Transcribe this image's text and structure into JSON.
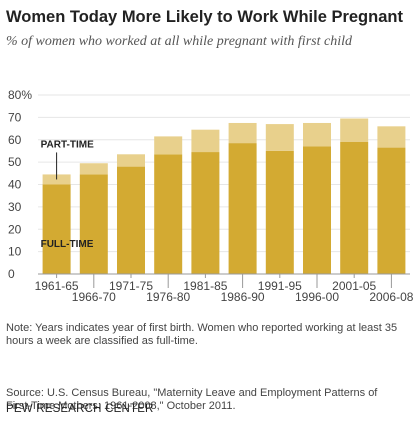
{
  "title": "Women Today More Likely to Work While Pregnant",
  "subtitle": "% of women who worked at all while pregnant with first child",
  "note": {
    "line1": "Note: Years indicates year of first birth. Women who reported working at least 35",
    "line2": "hours a week are classified as full-time."
  },
  "source": {
    "line1": "Source: U.S. Census Bureau, \"Maternity Leave and Employment Patterns of",
    "line2": "First-Time Mothers: 1961-2008,\" October 2011."
  },
  "credit": "PEW RESEARCH CENTER",
  "colors": {
    "full_time": "#d3aa32",
    "part_time": "#e8d08c",
    "axis": "#999999",
    "grid": "#e6e6e6"
  },
  "chart_data": {
    "type": "bar",
    "stacked": true,
    "categories": [
      "1961-65",
      "1966-70",
      "1971-75",
      "1976-80",
      "1981-85",
      "1986-90",
      "1991-95",
      "1996-00",
      "2001-05",
      "2006-08"
    ],
    "series": [
      {
        "name": "FULL-TIME",
        "values": [
          40,
          44.5,
          48,
          53.5,
          54.5,
          58.5,
          55,
          57,
          59,
          56.5
        ]
      },
      {
        "name": "PART-TIME",
        "values": [
          4.5,
          5,
          5.5,
          8,
          10,
          9,
          12,
          10.5,
          10.5,
          9.5
        ]
      }
    ],
    "ylim": [
      0,
      80
    ],
    "yticks": [
      0,
      10,
      20,
      30,
      40,
      50,
      60,
      70,
      80
    ],
    "ytick_labels": [
      "0",
      "10",
      "20",
      "30",
      "40",
      "50",
      "60",
      "70",
      "80%"
    ],
    "xtick_labels": [
      "1961-65",
      "1966-70",
      "1971-75",
      "1976-80",
      "1981-85",
      "1986-90",
      "1991-95",
      "1996-00",
      "2001-05",
      "2006-08"
    ],
    "grid": true,
    "legend": "inline labels on first bar"
  }
}
